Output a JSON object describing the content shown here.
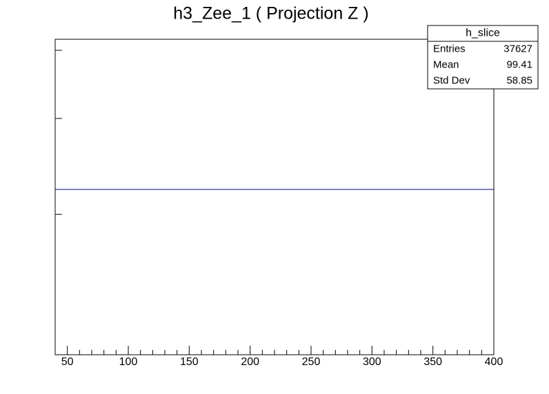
{
  "chart_data": {
    "type": "histogram",
    "title": "h3_Zee_1 ( Projection Z )",
    "bins": [
      40,
      400
    ],
    "values": [
      0.524
    ],
    "color": "#000080",
    "xlim": [
      40,
      400
    ],
    "xticks": [
      50,
      100,
      150,
      200,
      250,
      300,
      350,
      400
    ],
    "ylim": [
      0,
      1
    ],
    "yticks": [
      0.445,
      0.749,
      0.965
    ],
    "stats_box": {
      "title": "h_slice",
      "rows": [
        {
          "label": "Entries",
          "value": 37627
        },
        {
          "label": "Mean",
          "value": 99.41
        },
        {
          "label": "Std Dev",
          "value": 58.85
        }
      ]
    }
  }
}
